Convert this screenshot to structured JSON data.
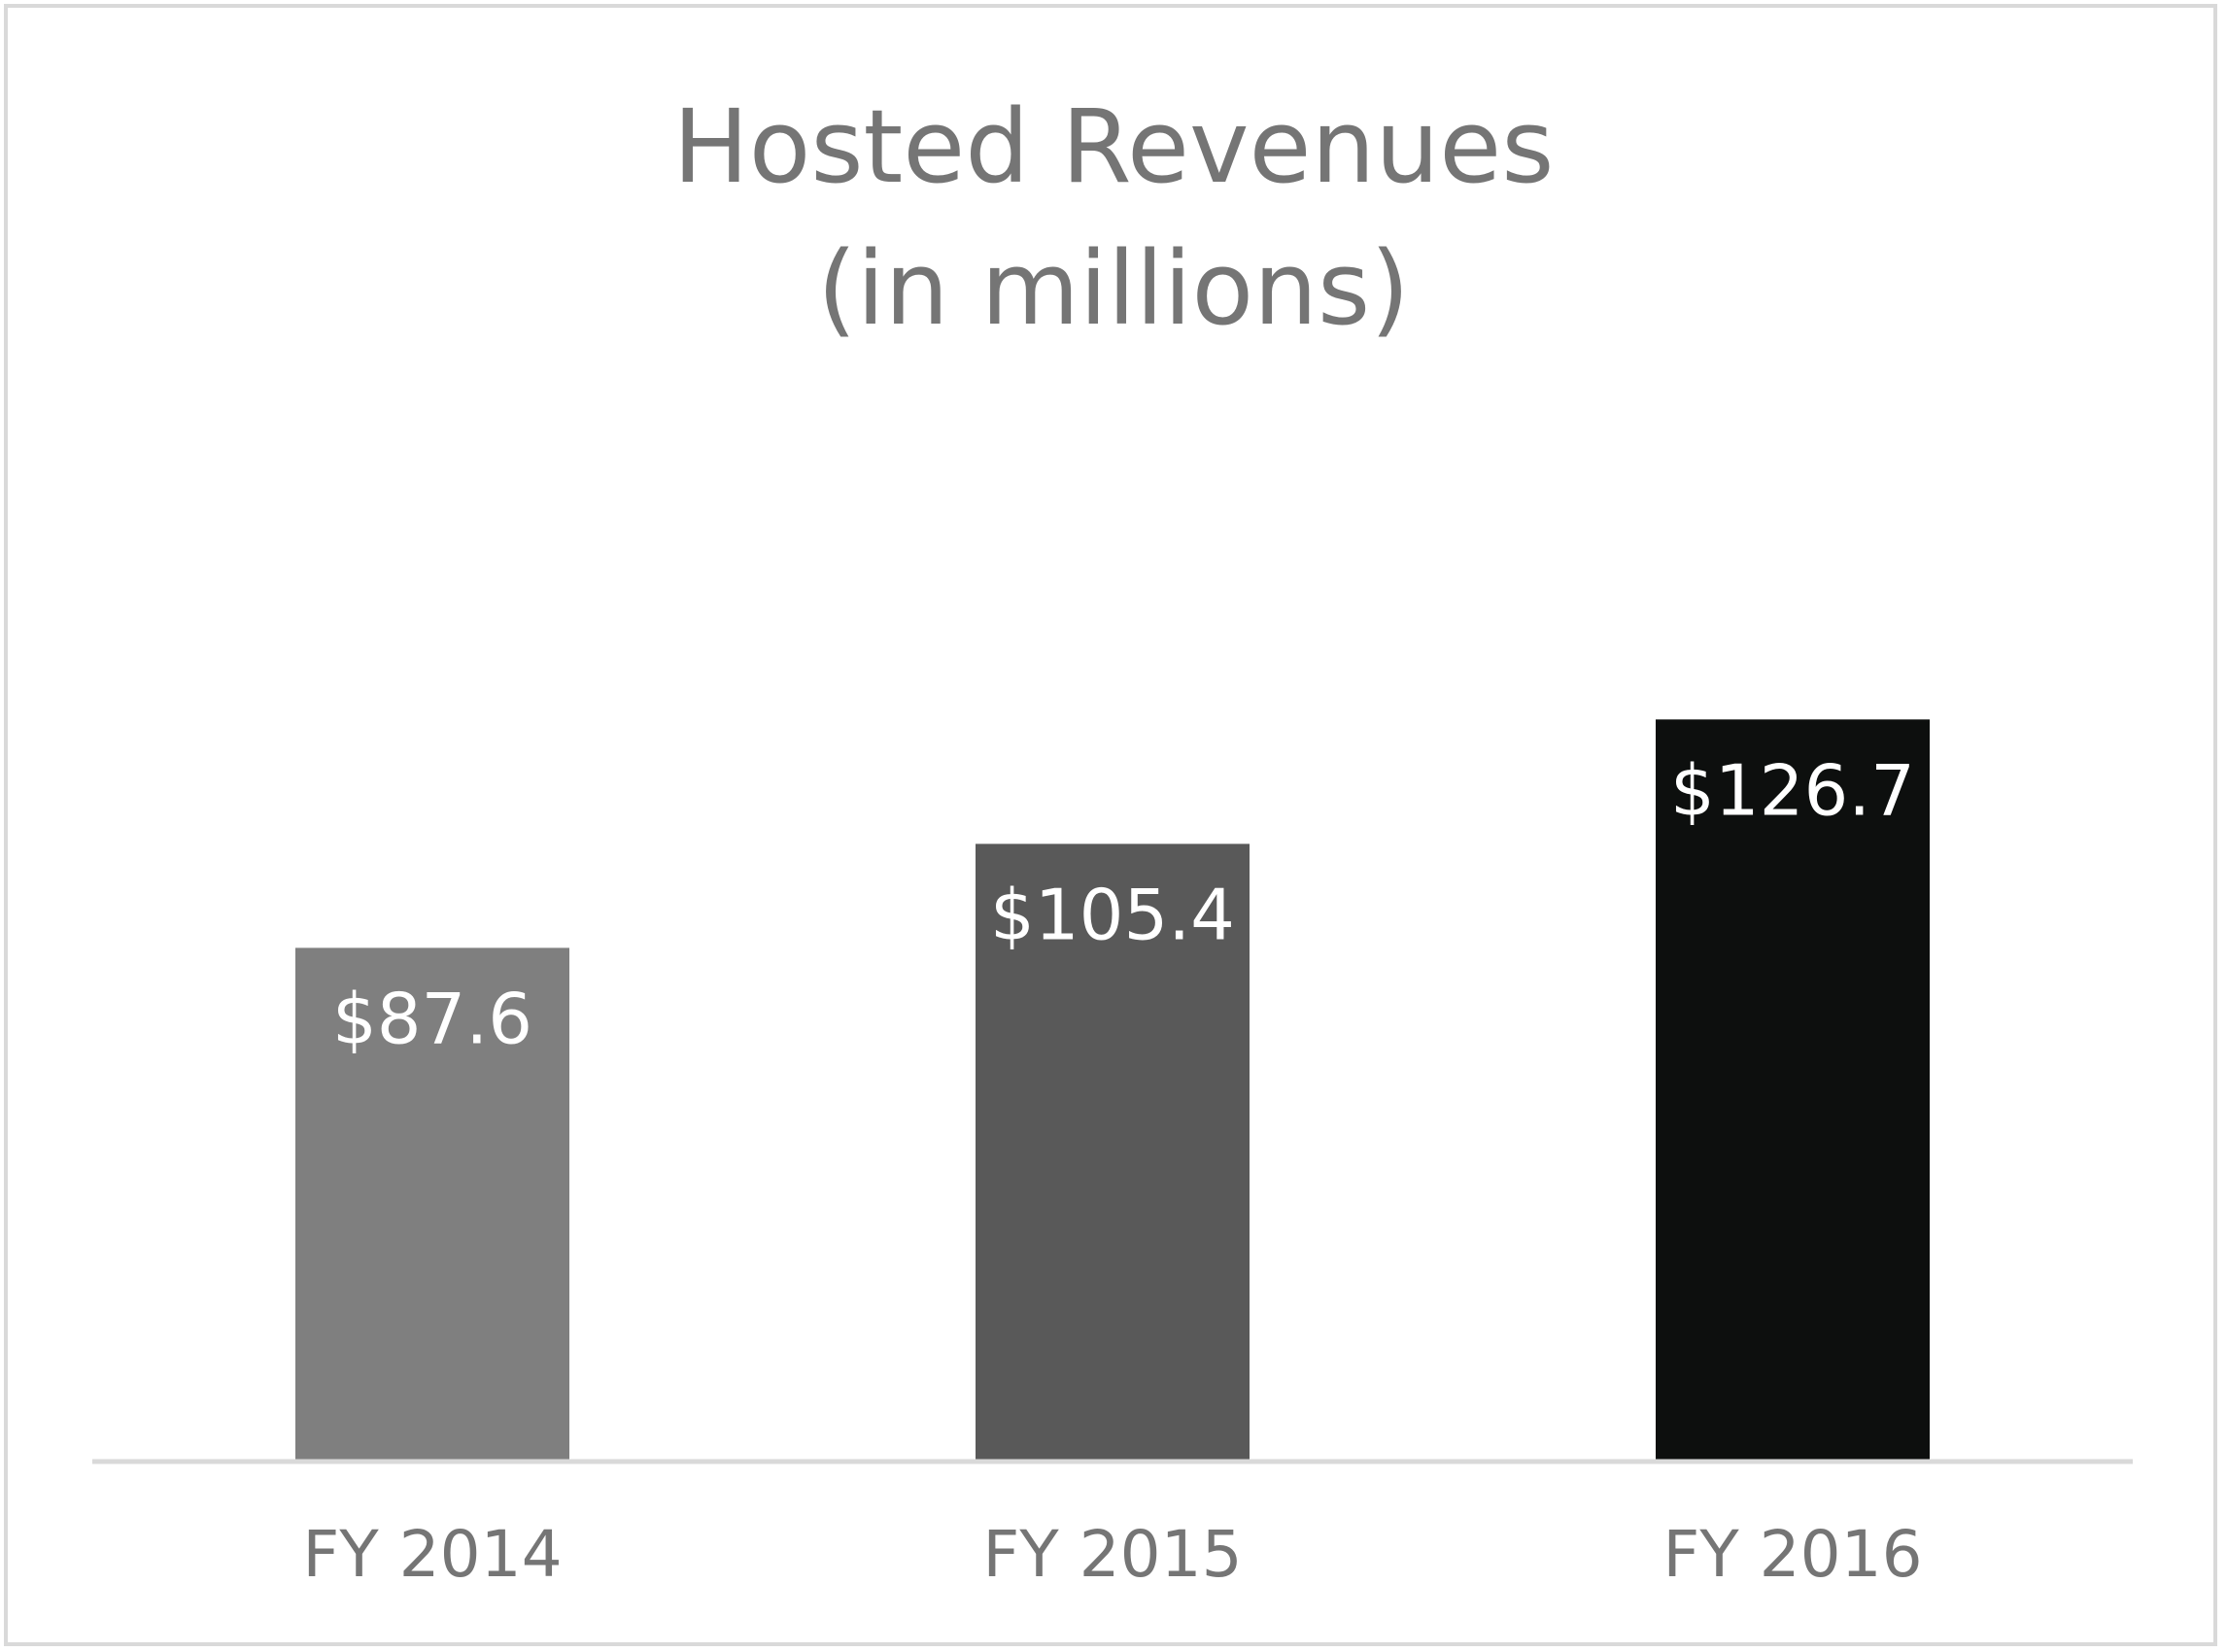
{
  "chart_data": {
    "type": "bar",
    "title_line1": "Hosted Revenues",
    "title_line2": "(in millions)",
    "categories": [
      "FY 2014",
      "FY 2015",
      "FY 2016"
    ],
    "values": [
      87.6,
      105.4,
      126.7
    ],
    "value_labels": [
      "$87.6",
      "$105.4",
      "$126.7"
    ],
    "bar_colors": [
      "#7f7f7f",
      "#595959",
      "#0d0f0e"
    ],
    "xlabel": "",
    "ylabel": "",
    "ylim": [
      0,
      175
    ],
    "grid": false,
    "legend": "none"
  },
  "colors": {
    "frame": "#d9d9d9",
    "axis": "#d9d9d9",
    "text": "#757575",
    "label": "#ffffff"
  }
}
